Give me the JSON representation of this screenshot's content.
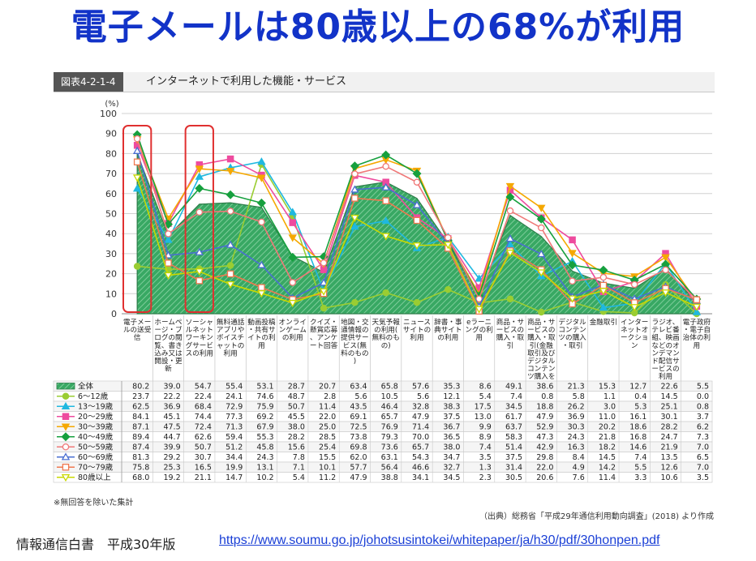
{
  "headline": "電子メールは80歳以上の68%が利用",
  "figure": {
    "tag": "図表4-2-1-4",
    "title": "インターネットで利用した機能・サービス"
  },
  "note": "※無回答を除いた集計",
  "source": "（出典）総務省「平成29年通信利用動向調査」(2018) より作成",
  "footer": {
    "label": "情報通信白書　平成30年版",
    "url": "https://www.soumu.go.jp/johotsusintokei/whitepaper/ja/h30/pdf/30honpen.pdf"
  },
  "colors": {
    "headline": "#1233c8",
    "area_fill": "#3fae6b",
    "highlight_box": "#e03030",
    "link": "#1a3fd6"
  },
  "chart_data": {
    "type": "line",
    "ylabel": "(%)",
    "ylim": [
      0,
      100
    ],
    "yticks": [
      0,
      10,
      20,
      30,
      40,
      50,
      60,
      70,
      80,
      90,
      100
    ],
    "grid": true,
    "highlighted_categories": [
      0,
      2
    ],
    "categories": [
      "電子メールの送受信",
      "ホームページ・ブログの閲覧、書き込み又は開設・更新",
      "ソーシャルネットワーキングサービスの利用",
      "無料通話アプリやボイスチャットの利用",
      "動画投稿・共有サイトの利用",
      "オンラインゲームの利用",
      "クイズ・懸賞応募、アンケート回答",
      "地図・交通情報の提供サービス(無料のもの)",
      "天気予報の利用(無料のもの)",
      "ニュースサイトの利用",
      "辞書・事典サイトの利用",
      "eラーニングの利用",
      "商品・サービスの購入・取引",
      "商品・サービスの購入・取引(金融取引及びデジタルコンテンツ購入を除く)",
      "デジタルコンテンツの購入・取引",
      "金融取引",
      "インターネットオークション",
      "ラジオ、テレビ番組、映画などのオンデマンド配信サービスの利用",
      "電子政府・電子自治体の利用"
    ],
    "series": [
      {
        "name": "全体",
        "color": "#2e8b57",
        "marker": "area",
        "values": [
          80.2,
          39.0,
          54.7,
          55.4,
          53.1,
          28.7,
          20.7,
          63.4,
          65.8,
          57.6,
          35.3,
          8.6,
          49.1,
          38.6,
          21.3,
          15.3,
          12.7,
          22.6,
          5.5
        ]
      },
      {
        "name": "6〜12歳",
        "color": "#9acd32",
        "marker": "circle-filled",
        "values": [
          23.7,
          22.2,
          22.4,
          24.1,
          74.6,
          48.7,
          2.8,
          5.6,
          10.5,
          5.6,
          12.1,
          5.4,
          7.4,
          0.8,
          5.8,
          1.1,
          0.4,
          14.5,
          0.0
        ]
      },
      {
        "name": "13〜19歳",
        "color": "#1fb8e0",
        "marker": "triangle-filled",
        "values": [
          62.5,
          36.9,
          68.4,
          72.9,
          75.9,
          50.7,
          11.4,
          43.5,
          46.4,
          32.8,
          38.3,
          17.5,
          34.5,
          18.8,
          26.2,
          3.0,
          5.3,
          25.1,
          0.8
        ]
      },
      {
        "name": "20〜29歳",
        "color": "#ee4b9e",
        "marker": "square-filled",
        "values": [
          84.1,
          45.1,
          74.4,
          77.3,
          69.2,
          45.5,
          22.0,
          69.1,
          65.7,
          47.9,
          37.5,
          13.0,
          61.7,
          47.9,
          36.9,
          11.0,
          16.1,
          30.1,
          3.7
        ]
      },
      {
        "name": "30〜39歳",
        "color": "#f5a800",
        "marker": "triangle-down-filled",
        "values": [
          87.1,
          47.5,
          72.4,
          71.3,
          67.9,
          38.0,
          25.0,
          72.5,
          76.9,
          71.4,
          36.7,
          9.9,
          63.7,
          52.9,
          30.3,
          20.2,
          18.6,
          28.2,
          6.2
        ]
      },
      {
        "name": "40〜49歳",
        "color": "#16a03e",
        "marker": "diamond-filled",
        "values": [
          89.4,
          44.7,
          62.6,
          59.4,
          55.3,
          28.2,
          28.5,
          73.8,
          79.3,
          70.0,
          36.5,
          8.9,
          58.3,
          47.3,
          24.3,
          21.8,
          16.8,
          24.7,
          7.3
        ]
      },
      {
        "name": "50〜59歳",
        "color": "#f07878",
        "marker": "circle-open",
        "values": [
          87.4,
          39.9,
          50.7,
          51.2,
          45.8,
          15.6,
          25.4,
          69.8,
          73.6,
          65.7,
          38.0,
          7.4,
          51.4,
          42.9,
          16.3,
          18.2,
          14.6,
          21.9,
          7.0
        ]
      },
      {
        "name": "60〜69歳",
        "color": "#4a6fd1",
        "marker": "triangle-open",
        "values": [
          81.3,
          29.2,
          30.7,
          34.4,
          24.3,
          7.8,
          15.5,
          62.0,
          63.1,
          54.3,
          34.7,
          3.5,
          37.5,
          29.8,
          8.4,
          14.5,
          7.4,
          13.5,
          6.5
        ]
      },
      {
        "name": "70〜79歳",
        "color": "#f07850",
        "marker": "square-open",
        "values": [
          75.8,
          25.3,
          16.5,
          19.9,
          13.1,
          7.1,
          10.1,
          57.7,
          56.4,
          46.6,
          32.7,
          1.3,
          31.4,
          22.0,
          4.9,
          14.2,
          5.5,
          12.6,
          7.0
        ]
      },
      {
        "name": "80歳以上",
        "color": "#c8d800",
        "marker": "triangle-down-open",
        "values": [
          68.0,
          19.2,
          21.1,
          14.7,
          10.2,
          5.4,
          11.2,
          47.9,
          38.8,
          34.1,
          34.5,
          2.3,
          30.5,
          20.6,
          7.6,
          11.4,
          3.3,
          10.6,
          3.5
        ]
      }
    ]
  }
}
